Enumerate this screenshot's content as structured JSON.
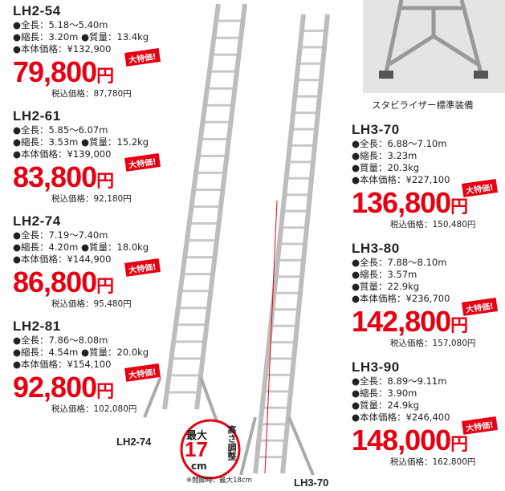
{
  "left_products": [
    {
      "model": "LH2-54",
      "specs": [
        "●全長：5.18～5.40m",
        "●縮長：3.20m ●質量：13.4kg",
        "●本体価格：¥132,900"
      ],
      "price": "79,800",
      "yen": "円",
      "badge": "大特価!",
      "tax": "税込価格：87,780円"
    },
    {
      "model": "LH2-61",
      "specs": [
        "●全長：5.85～6.07m",
        "●縮長：3.53m ●質量：15.2kg",
        "●本体価格：¥139,000"
      ],
      "price": "83,800",
      "yen": "円",
      "badge": "大特価!",
      "tax": "税込価格：92,180円"
    },
    {
      "model": "LH2-74",
      "specs": [
        "●全長：7.19～7.40m",
        "●縮長：4.20m ●質量：18.0kg",
        "●本体価格：¥144,900"
      ],
      "price": "86,800",
      "yen": "円",
      "badge": "大特価!",
      "tax": "税込価格：95,480円"
    },
    {
      "model": "LH2-81",
      "specs": [
        "●全長：7.86～8.08m",
        "●縮長：4.54m ●質量：20.0kg",
        "●本体価格：¥154,100"
      ],
      "price": "92,800",
      "yen": "円",
      "badge": "大特価!",
      "tax": "税込価格：102,080円"
    }
  ],
  "right_products": [
    {
      "model": "LH3-70",
      "specs": [
        "●全長：6.88～7.10m",
        "●縮長：3.23m",
        "●質量：20.3kg",
        "●本体価格：¥227,100"
      ],
      "price": "136,800",
      "yen": "円",
      "badge": "大特価!",
      "tax": "税込価格：150,480円"
    },
    {
      "model": "LH3-80",
      "specs": [
        "●全長：7.88～8.10m",
        "●縮長：3.57m",
        "●質量：22.9kg",
        "●本体価格：¥236,700"
      ],
      "price": "142,800",
      "yen": "円",
      "badge": "大特価!",
      "tax": "税込価格：157,080円"
    },
    {
      "model": "LH3-90",
      "specs": [
        "●全長：8.89～9.11m",
        "●縮長：3.90m",
        "●質量：24.9kg",
        "●本体価格：¥246,400"
      ],
      "price": "148,000",
      "yen": "円",
      "badge": "大特価!",
      "tax": "税込価格：162,800円"
    }
  ],
  "photo_caption": "スタビライザー標準装備",
  "ladder_labels": [
    "LH2-74",
    "LH3-70"
  ],
  "height_badge": {
    "max": "最大",
    "number": "17",
    "unit": "cm",
    "text": "高さ調整",
    "note": "※開脚時、最大18cm"
  }
}
